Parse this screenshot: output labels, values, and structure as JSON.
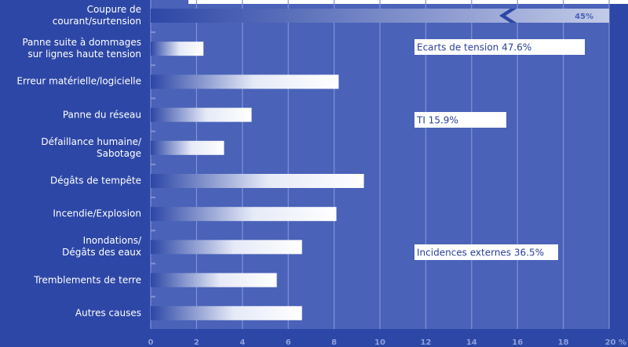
{
  "chart_data": {
    "type": "bar",
    "orientation": "horizontal",
    "categories": [
      "Coupure de courant/surtension",
      "Panne suite à dommages\nsur lignes haute tension",
      "Erreur matérielle/logicielle",
      "Panne du réseau",
      "Défaillance humaine/\nSabotage",
      "Dégâts de tempête",
      "Incendie/Explosion",
      "Inondations/\nDégâts des eaux",
      "Tremblements de terre",
      "Autres causes"
    ],
    "values": [
      45,
      2.3,
      8.2,
      4.4,
      3.2,
      9.3,
      8.1,
      6.6,
      5.5,
      6.6
    ],
    "value_labels": [
      "45%",
      null,
      null,
      null,
      null,
      null,
      null,
      null,
      null,
      null
    ],
    "color": "#ffffff",
    "xlim": [
      0,
      20
    ],
    "xticks": [
      0,
      2,
      4,
      6,
      8,
      10,
      12,
      14,
      16,
      18,
      {
        "value": 20,
        "label": "20 %"
      }
    ],
    "grid": true,
    "annotations": [
      "Ecarts de tension 47.6%",
      "TI 15.9%",
      "Incidences externes 36.5%"
    ]
  }
}
